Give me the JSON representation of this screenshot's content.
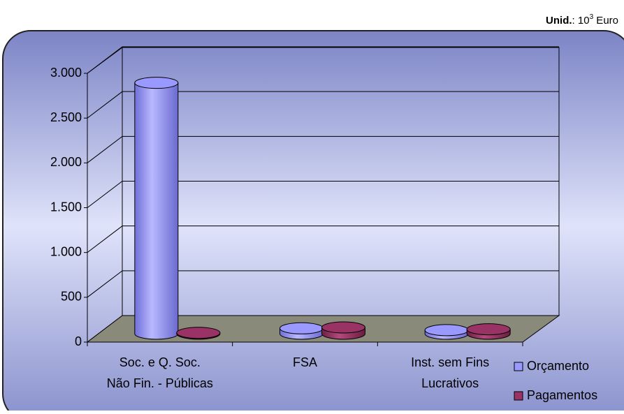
{
  "chart_data": {
    "type": "bar3d",
    "unit_label": {
      "bold": "Unid.",
      "text": ": 10",
      "sup": "3",
      "suffix": " Euro"
    },
    "categories": [
      [
        "Soc. e Q. Soc.",
        "Não Fin. - Públicas"
      ],
      [
        "FSA"
      ],
      [
        "Inst. sem Fins",
        "Lucrativos"
      ]
    ],
    "series": [
      {
        "name": "Orçamento",
        "color": "#9999ff",
        "values": [
          2800,
          60,
          40
        ]
      },
      {
        "name": "Pagamentos",
        "color": "#993366",
        "values": [
          10,
          70,
          50
        ]
      }
    ],
    "ylim": [
      0,
      3000
    ],
    "yticks": [
      0,
      500,
      {
        "value": 1000,
        "label": "1.000"
      },
      {
        "value": 1500,
        "label": "1.500"
      },
      {
        "value": 2000,
        "label": "2.000"
      },
      {
        "value": 2500,
        "label": "2.500"
      },
      {
        "value": 3000,
        "label": "3.000"
      }
    ],
    "grid": true
  }
}
